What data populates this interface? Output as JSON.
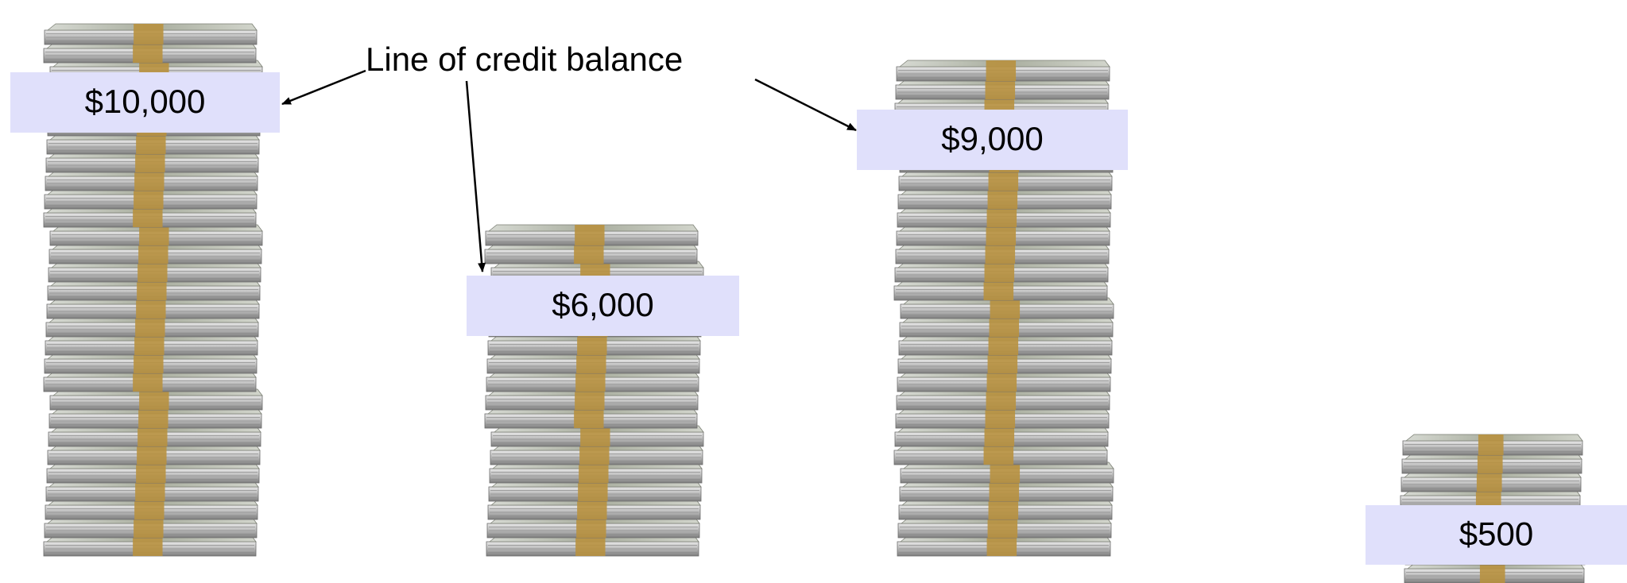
{
  "annotation": "Line of credit balance",
  "stacks": [
    {
      "label": "$10,000"
    },
    {
      "label": "$6,000"
    },
    {
      "label": "$9,000"
    },
    {
      "label": "$500"
    }
  ]
}
